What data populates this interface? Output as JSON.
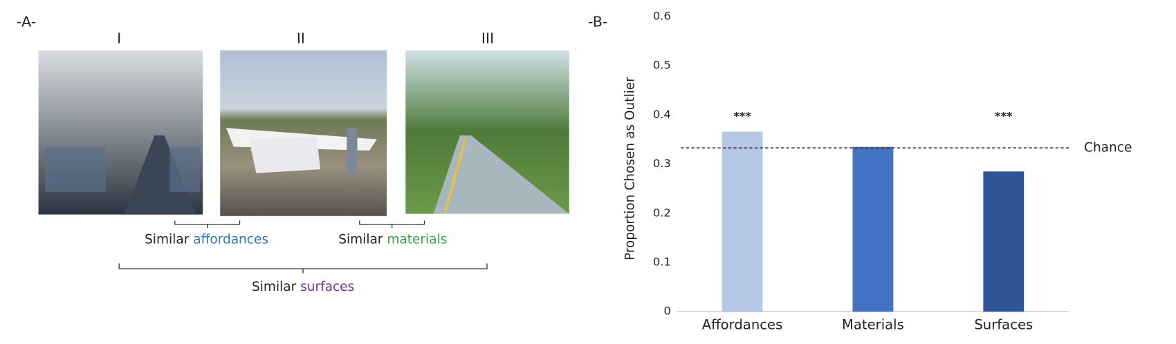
{
  "panel_a": {
    "label": "-A-",
    "image_labels": [
      "I",
      "II",
      "III"
    ],
    "pair_1": {
      "prefix": "Similar",
      "word": "affordances",
      "color": "#2e75b6"
    },
    "pair_2": {
      "prefix": "Similar",
      "word": "materials",
      "color": "#3aa346"
    },
    "triple": {
      "prefix": "Similar",
      "word": "surfaces",
      "color": "#7030a0"
    }
  },
  "chart_data": {
    "type": "bar",
    "panel_label": "-B-",
    "y_label": "Proportion Chosen as Outlier",
    "categories": [
      "Affordances",
      "Materials",
      "Surfaces"
    ],
    "values": [
      0.366,
      0.335,
      0.285
    ],
    "colors": [
      "#b4c7e7",
      "#4472c4",
      "#2f5597"
    ],
    "significance": [
      "***",
      null,
      "***"
    ],
    "reference_line": {
      "value": 0.333,
      "label": "Chance"
    },
    "ylim": [
      0,
      0.6
    ],
    "yticks": [
      0,
      0.1,
      0.2,
      0.3,
      0.4,
      0.5,
      0.6
    ],
    "grid": false
  }
}
